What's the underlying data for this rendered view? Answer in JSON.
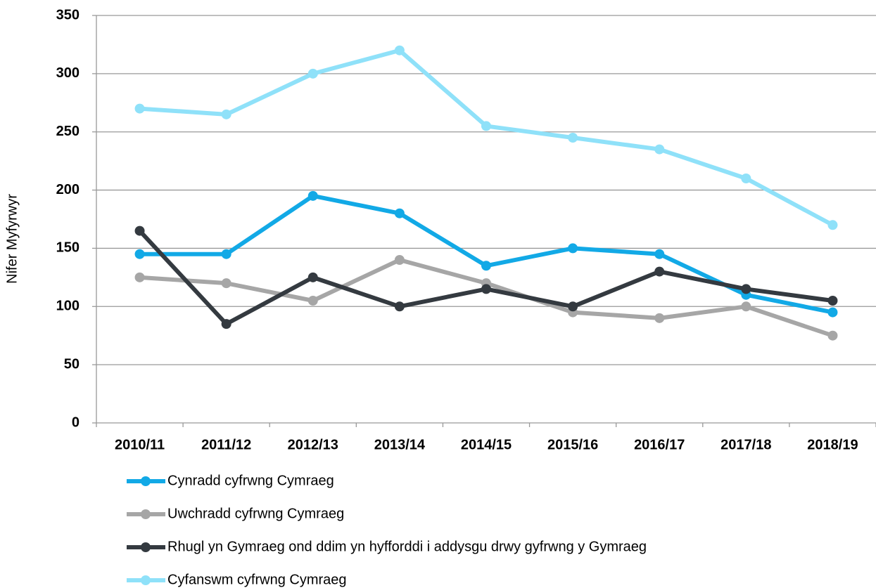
{
  "chart_data": {
    "type": "line",
    "y_label": "Nifer Myfyrwyr",
    "categories": [
      "2010/11",
      "2011/12",
      "2012/13",
      "2013/14",
      "2014/15",
      "2015/16",
      "2016/17",
      "2017/18",
      "2018/19"
    ],
    "series": [
      {
        "name": "Cynradd cyfrwng Cymraeg",
        "color": "#12a9e6",
        "values": [
          145,
          145,
          195,
          180,
          135,
          150,
          145,
          110,
          95
        ]
      },
      {
        "name": "Uwchradd cyfrwng Cymraeg",
        "color": "#a6a6a6",
        "values": [
          125,
          120,
          105,
          140,
          120,
          95,
          90,
          100,
          75
        ]
      },
      {
        "name": "Rhugl yn Gymraeg ond ddim yn hyfforddi i addysgu drwy gyfrwng y Gymraeg",
        "color": "#343a40",
        "values": [
          165,
          85,
          125,
          100,
          115,
          100,
          130,
          115,
          105
        ]
      },
      {
        "name": "Cyfanswm cyfrwng Cymraeg",
        "color": "#8fe1f9",
        "values": [
          270,
          265,
          300,
          320,
          255,
          245,
          235,
          210,
          170
        ]
      }
    ],
    "ylim": [
      0,
      350
    ],
    "yticks": [
      0,
      50,
      100,
      150,
      200,
      250,
      300,
      350
    ],
    "grid": true,
    "legend": "bottom"
  }
}
